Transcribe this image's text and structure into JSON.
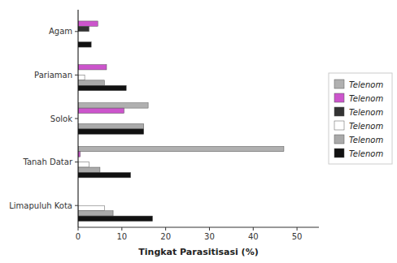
{
  "chart_data": {
    "type": "bar",
    "orientation": "horizontal",
    "x_label": "Tingkat Parasitisasi (%)",
    "categories": [
      "Limapuluh Kota",
      "Tanah Datar",
      "Solok",
      "Pariaman",
      "Agam"
    ],
    "series": [
      {
        "name": "Telenom",
        "color": "#b0b0b0",
        "values": [
          0,
          47,
          16,
          0,
          0
        ]
      },
      {
        "name": "Telenom",
        "color": "#cc55cc",
        "values": [
          0,
          0.5,
          10.5,
          6.5,
          4.5
        ]
      },
      {
        "name": "Telenom",
        "color": "#333333",
        "values": [
          0,
          0,
          0,
          0,
          2.5
        ]
      },
      {
        "name": "Telenom",
        "color": "#ffffff",
        "values": [
          6.0,
          2.5,
          0,
          1.5,
          0
        ]
      },
      {
        "name": "Telenom",
        "color": "#aaaaaa",
        "values": [
          8,
          5,
          15,
          6,
          0
        ]
      },
      {
        "name": "Telenom",
        "color": "#111111",
        "values": [
          17,
          12,
          15,
          11,
          3
        ]
      }
    ],
    "xlim": [
      0,
      55
    ],
    "xticks": [
      0,
      10,
      20,
      30,
      40,
      50
    ],
    "grid": false,
    "legend": "right"
  }
}
